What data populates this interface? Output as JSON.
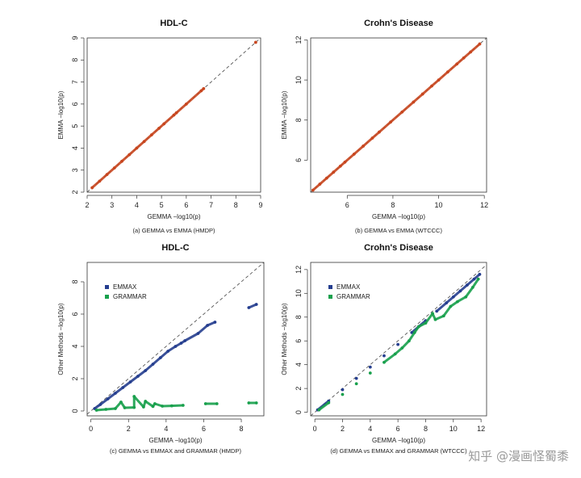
{
  "watermark": "知乎 @漫画怪蜀黍",
  "colors": {
    "emma": "#c8461f",
    "emmax": "#253e8f",
    "grammar": "#18a04c",
    "diag": "#444444",
    "axis": "#333333"
  },
  "chart_data": [
    {
      "type": "scatter",
      "title": "HDL-C",
      "xlabel": "GEMMA  −log10(p)",
      "ylabel": "EMMA  −log10(p)",
      "caption": "(a) GEMMA vs EMMA (HMDP)",
      "xlim": [
        2,
        9
      ],
      "ylim": [
        2,
        9
      ],
      "xticks": [
        2,
        3,
        4,
        5,
        6,
        7,
        8,
        9
      ],
      "yticks": [
        2,
        3,
        4,
        5,
        6,
        7,
        8,
        9
      ],
      "legend": "none",
      "series": [
        {
          "name": "",
          "color": "#c8461f",
          "points": [
            [
              2.2,
              2.2
            ],
            [
              2.5,
              2.5
            ],
            [
              2.8,
              2.8
            ],
            [
              3.1,
              3.1
            ],
            [
              3.4,
              3.4
            ],
            [
              3.7,
              3.7
            ],
            [
              4.0,
              4.0
            ],
            [
              4.3,
              4.3
            ],
            [
              4.6,
              4.6
            ],
            [
              4.9,
              4.9
            ],
            [
              5.1,
              5.1
            ],
            [
              5.5,
              5.5
            ],
            [
              5.6,
              5.6
            ],
            [
              6.0,
              6.0
            ],
            [
              6.6,
              6.6
            ],
            [
              6.7,
              6.7
            ],
            [
              8.8,
              8.8
            ]
          ]
        }
      ]
    },
    {
      "type": "scatter",
      "title": "Crohn's Disease",
      "xlabel": "GEMMA  −log10(p)",
      "ylabel": "EMMA  −log10(p)",
      "caption": "(b) GEMMA vs EMMA (WTCCC)",
      "xlim": [
        4.4,
        12.1
      ],
      "ylim": [
        4.4,
        12.1
      ],
      "xticks": [
        6,
        8,
        10,
        12
      ],
      "yticks": [
        6,
        8,
        10,
        12
      ],
      "legend": "none",
      "series": [
        {
          "name": "",
          "color": "#c8461f",
          "points": [
            [
              4.5,
              4.5
            ],
            [
              4.8,
              4.8
            ],
            [
              5.1,
              5.1
            ],
            [
              5.4,
              5.4
            ],
            [
              5.7,
              5.7
            ],
            [
              5.9,
              5.9
            ],
            [
              6.3,
              6.3
            ],
            [
              6.7,
              6.7
            ],
            [
              7.1,
              7.1
            ],
            [
              7.4,
              7.4
            ],
            [
              7.9,
              7.9
            ],
            [
              8.4,
              8.4
            ],
            [
              8.9,
              8.9
            ],
            [
              9.3,
              9.3
            ],
            [
              9.7,
              9.7
            ],
            [
              10.0,
              10.0
            ],
            [
              10.4,
              10.4
            ],
            [
              10.8,
              10.8
            ],
            [
              11.1,
              11.1
            ],
            [
              11.4,
              11.4
            ],
            [
              11.8,
              11.8
            ]
          ]
        }
      ]
    },
    {
      "type": "scatter",
      "title": "HDL-C",
      "xlabel": "GEMMA  −log10(p)",
      "ylabel": "Other Methods  −log10(p)",
      "caption": "(c) GEMMA vs EMMAX and GRAMMAR (HMDP)",
      "xlim": [
        -0.2,
        9.2
      ],
      "ylim": [
        -0.3,
        9.2
      ],
      "xticks": [
        0,
        2,
        4,
        6,
        8
      ],
      "yticks": [
        0,
        2,
        4,
        6,
        8
      ],
      "legend": "top-left",
      "series": [
        {
          "name": "EMMAX",
          "color": "#253e8f",
          "points": [
            [
              0.2,
              0.15
            ],
            [
              0.5,
              0.4
            ],
            [
              0.9,
              0.75
            ],
            [
              1.3,
              1.1
            ],
            [
              1.7,
              1.45
            ],
            [
              2.1,
              1.8
            ],
            [
              2.5,
              2.15
            ],
            [
              2.9,
              2.5
            ],
            [
              3.3,
              2.9
            ],
            [
              3.7,
              3.3
            ],
            [
              4.1,
              3.7
            ],
            [
              4.5,
              4.0
            ],
            [
              4.8,
              4.2
            ],
            [
              5.0,
              4.35
            ],
            [
              5.7,
              4.8
            ],
            [
              6.2,
              5.3
            ],
            [
              6.6,
              5.5
            ],
            [
              8.4,
              6.4
            ],
            [
              8.8,
              6.6
            ]
          ]
        },
        {
          "name": "GRAMMAR",
          "color": "#18a04c",
          "points": [
            [
              0.3,
              0.05
            ],
            [
              0.8,
              0.1
            ],
            [
              1.3,
              0.15
            ],
            [
              1.8,
              0.2
            ],
            [
              2.3,
              0.22
            ],
            [
              2.8,
              0.25
            ],
            [
              3.3,
              0.28
            ],
            [
              3.8,
              0.3
            ],
            [
              4.3,
              0.32
            ],
            [
              4.9,
              0.35
            ],
            [
              1.6,
              0.55
            ],
            [
              2.3,
              0.9
            ],
            [
              2.9,
              0.6
            ],
            [
              3.4,
              0.45
            ],
            [
              6.1,
              0.45
            ],
            [
              6.7,
              0.45
            ],
            [
              8.4,
              0.5
            ],
            [
              8.8,
              0.5
            ]
          ]
        }
      ]
    },
    {
      "type": "scatter",
      "title": "Crohn's Disease",
      "xlabel": "GEMMA  −log10(p)",
      "ylabel": "Other Methods  −log10(p)",
      "caption": "(d) GEMMA vs EMMAX and GRAMMAR (WTCCC)",
      "xlim": [
        -0.3,
        12.4
      ],
      "ylim": [
        -0.3,
        12.6
      ],
      "xticks": [
        0,
        2,
        4,
        6,
        8,
        10,
        12
      ],
      "yticks": [
        0,
        2,
        4,
        6,
        8,
        10,
        12
      ],
      "legend": "top-left",
      "series": [
        {
          "name": "EMMAX",
          "color": "#253e8f",
          "points": [
            [
              0.2,
              0.2
            ],
            [
              1.0,
              0.95
            ],
            [
              2.0,
              1.9
            ],
            [
              3.0,
              2.85
            ],
            [
              4.0,
              3.8
            ],
            [
              5.0,
              4.75
            ],
            [
              6.0,
              5.7
            ],
            [
              7.0,
              6.7
            ],
            [
              7.5,
              7.2
            ],
            [
              8.0,
              7.7
            ],
            [
              8.8,
              8.5
            ],
            [
              9.5,
              9.2
            ],
            [
              10.0,
              9.7
            ],
            [
              10.5,
              10.2
            ],
            [
              11.0,
              10.7
            ],
            [
              11.5,
              11.2
            ],
            [
              11.9,
              11.6
            ]
          ]
        },
        {
          "name": "GRAMMAR",
          "color": "#18a04c",
          "points": [
            [
              0.3,
              0.2
            ],
            [
              1.0,
              0.8
            ],
            [
              2.0,
              1.5
            ],
            [
              3.0,
              2.4
            ],
            [
              4.0,
              3.3
            ],
            [
              5.0,
              4.2
            ],
            [
              5.8,
              4.9
            ],
            [
              6.3,
              5.4
            ],
            [
              7.2,
              6.7
            ],
            [
              8.0,
              7.5
            ],
            [
              8.7,
              7.8
            ],
            [
              9.3,
              8.1
            ],
            [
              9.8,
              8.9
            ],
            [
              10.3,
              9.3
            ],
            [
              10.9,
              9.7
            ],
            [
              11.4,
              10.5
            ],
            [
              11.8,
              11.2
            ],
            [
              7.5,
              7.2
            ],
            [
              8.5,
              8.3
            ],
            [
              6.8,
              6.0
            ]
          ]
        }
      ]
    }
  ]
}
